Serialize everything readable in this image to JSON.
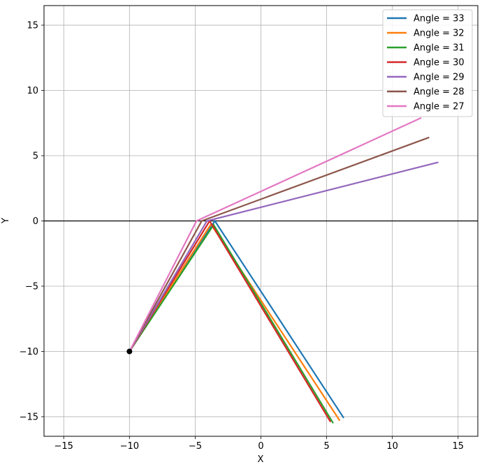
{
  "chart_data": {
    "type": "line",
    "xlabel": "X",
    "ylabel": "Y",
    "xlim": [
      -16.5,
      16.5
    ],
    "ylim": [
      -16.5,
      16.5
    ],
    "xticks": [
      -15,
      -10,
      -5,
      0,
      5,
      10,
      15
    ],
    "yticks": [
      -15,
      -10,
      -5,
      0,
      5,
      10,
      15
    ],
    "xtick_labels": [
      "−15",
      "−10",
      "−5",
      "0",
      "5",
      "10",
      "15"
    ],
    "ytick_labels": [
      "−15",
      "−10",
      "−5",
      "0",
      "5",
      "10",
      "15"
    ],
    "grid": true,
    "legend_position": "top-right",
    "hline_y": 0,
    "source_point": [
      -10,
      -10
    ],
    "series": [
      {
        "name": "Angle = 33",
        "color": "#1f77b4",
        "x": [
          -10,
          -3.5,
          6.3
        ],
        "y": [
          -10,
          0,
          -15.1
        ]
      },
      {
        "name": "Angle = 32",
        "color": "#ff7f0e",
        "x": [
          -10,
          -3.8,
          6.0
        ],
        "y": [
          -10,
          -0.25,
          -15.3
        ]
      },
      {
        "name": "Angle = 31",
        "color": "#2ca02c",
        "x": [
          -10,
          -3.6,
          5.5
        ],
        "y": [
          -10,
          -0.3,
          -15.5
        ]
      },
      {
        "name": "Angle = 30",
        "color": "#d62728",
        "x": [
          -10,
          -3.9,
          5.3
        ],
        "y": [
          -10,
          0,
          -15.4
        ]
      },
      {
        "name": "Angle = 29",
        "color": "#9467bd",
        "x": [
          -10,
          -4.1,
          13.5
        ],
        "y": [
          -10,
          0,
          4.5
        ]
      },
      {
        "name": "Angle = 28",
        "color": "#8c564b",
        "x": [
          -10,
          -4.5,
          12.8
        ],
        "y": [
          -10,
          0,
          6.4
        ]
      },
      {
        "name": "Angle = 27",
        "color": "#e377c2",
        "x": [
          -10,
          -4.9,
          12.2
        ],
        "y": [
          -10,
          0,
          7.9
        ]
      }
    ]
  }
}
